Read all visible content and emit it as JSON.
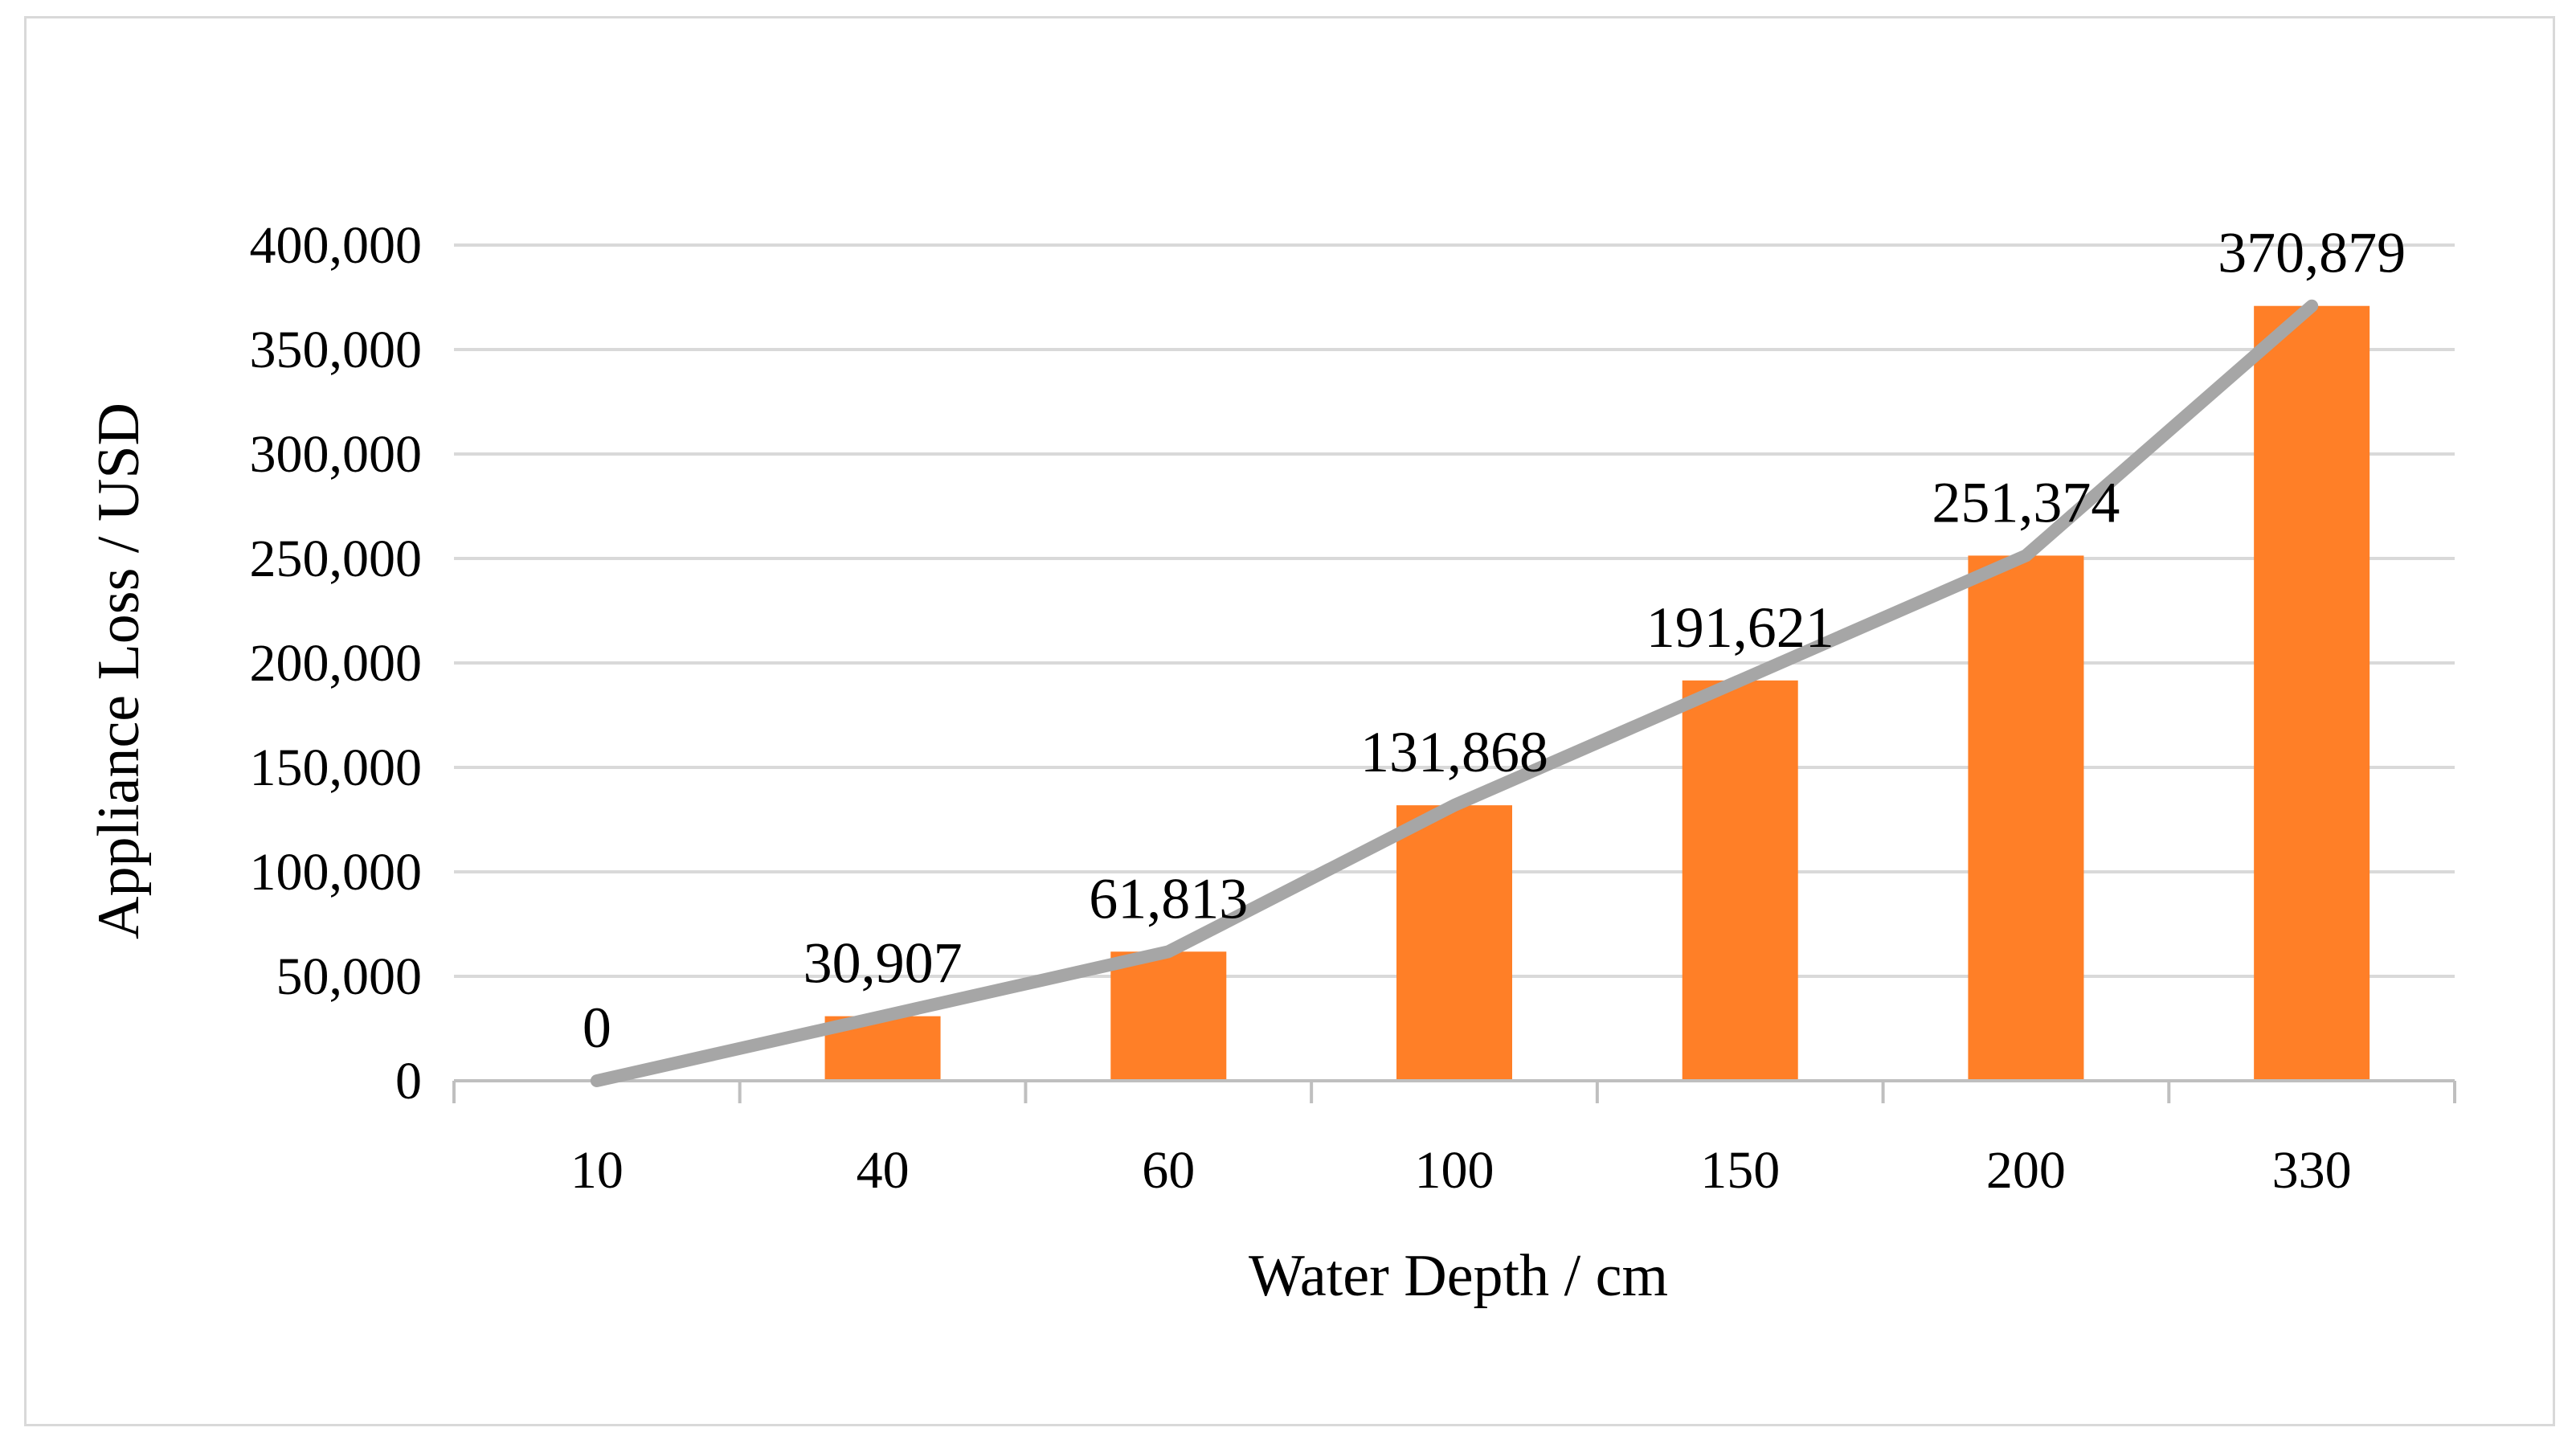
{
  "chart_data": {
    "type": "bar",
    "title": "",
    "xlabel": "Water Depth / cm",
    "ylabel": "Appliance Loss / USD",
    "categories": [
      "10",
      "40",
      "60",
      "100",
      "150",
      "200",
      "330"
    ],
    "values": [
      0,
      30907,
      61813,
      131868,
      191621,
      251374,
      370879
    ],
    "data_labels": [
      "0",
      "30,907",
      "61,813",
      "131,868",
      "191,621",
      "251,374",
      "370,879"
    ],
    "ylim": [
      0,
      400000
    ],
    "yticks": [
      0,
      50000,
      100000,
      150000,
      200000,
      250000,
      300000,
      350000,
      400000
    ],
    "ytick_labels": [
      "0",
      "50,000",
      "100,000",
      "150,000",
      "200,000",
      "250,000",
      "300,000",
      "350,000",
      "400,000"
    ],
    "grid": true,
    "overlay_line": {
      "type": "line",
      "values": [
        0,
        30907,
        61813,
        131868,
        191621,
        251374,
        370879
      ]
    },
    "colors": {
      "bar": "#FF7F27",
      "line": "#A6A6A6",
      "grid": "#D9D9D9",
      "axis": "#BFBFBF",
      "border": "#D9D9D9"
    }
  }
}
